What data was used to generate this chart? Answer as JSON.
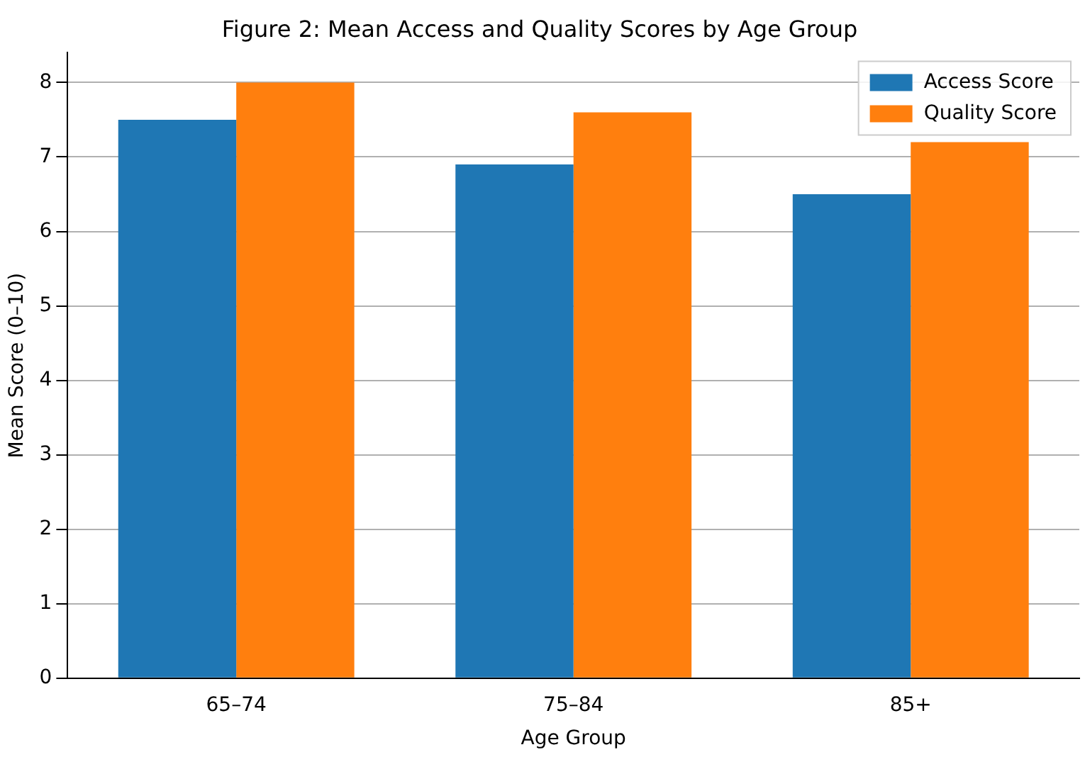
{
  "chart_data": {
    "type": "bar",
    "title": "Figure 2: Mean Access and Quality Scores by Age Group",
    "xlabel": "Age Group",
    "ylabel": "Mean Score (0–10)",
    "categories": [
      "65–74",
      "75–84",
      "85+"
    ],
    "series": [
      {
        "name": "Access Score",
        "color": "#1f77b4",
        "values": [
          7.5,
          6.9,
          6.5
        ]
      },
      {
        "name": "Quality Score",
        "color": "#ff7f0e",
        "values": [
          8.0,
          7.6,
          7.2
        ]
      }
    ],
    "ylim": [
      0,
      8.4
    ],
    "yticks": [
      0,
      1,
      2,
      3,
      4,
      5,
      6,
      7,
      8
    ],
    "grid": "y",
    "legend": "top right"
  }
}
